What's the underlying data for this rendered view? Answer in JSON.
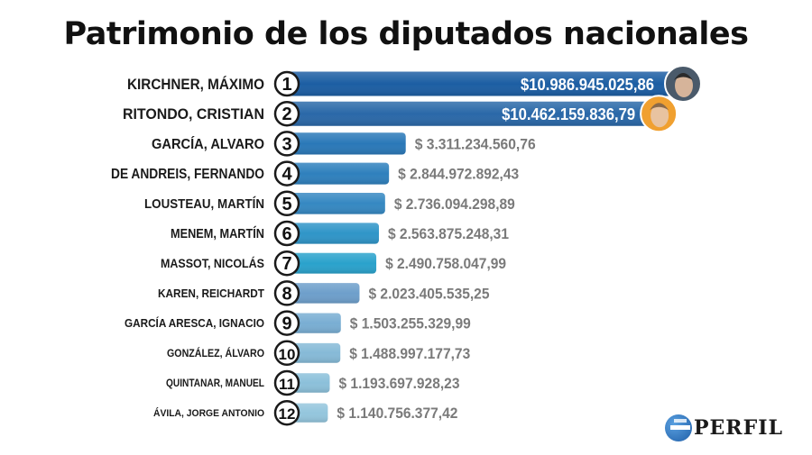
{
  "title": "Patrimonio de los diputados nacionales",
  "logo_text": "PERFIL",
  "chart_data": {
    "type": "bar",
    "orientation": "horizontal",
    "title": "Patrimonio de los diputados nacionales",
    "categories": [
      "KIRCHNER, MÁXIMO",
      "RITONDO, CRISTIAN",
      "GARCÍA, ALVARO",
      "DE ANDREIS, FERNANDO",
      "LOUSTEAU, MARTÍN",
      "MENEM, MARTÍN",
      "MASSOT, NICOLÁS",
      "KAREN, REICHARDT",
      "GARCÍA ARESCA, IGNACIO",
      "GONZÁLEZ, ÁLVARO",
      "QUINTANAR, MANUEL",
      "ÁVILA, JORGE ANTONIO"
    ],
    "ranks": [
      "1",
      "2",
      "3",
      "4",
      "5",
      "6",
      "7",
      "8",
      "9",
      "10",
      "11",
      "12"
    ],
    "values": [
      10986945025.86,
      10462159836.79,
      3311234560.76,
      2844972892.43,
      2736094298.89,
      2563875248.31,
      2490758047.99,
      2023405535.25,
      1503255329.99,
      1488997177.73,
      1193697928.23,
      1140756377.42
    ],
    "value_labels": [
      "$10.986.945.025,86",
      "$10.462.159.836,79",
      "$ 3.311.234.560,76",
      "$ 2.844.972.892,43",
      "$ 2.736.094.298,89",
      "$ 2.563.875.248,31",
      "$ 2.490.758.047,99",
      "$ 2.023.405.535,25",
      "$ 1.503.255.329,99",
      "$ 1.488.997.177,73",
      "$ 1.193.697.928,23",
      "$ 1.140.756.377,42"
    ],
    "colors": [
      "#1c5ea3",
      "#2a68a8",
      "#2a78b8",
      "#2f80bd",
      "#3588c2",
      "#2f95c8",
      "#2aa2cc",
      "#6e9fcb",
      "#79aed3",
      "#86bad7",
      "#8cc0da",
      "#94c6dd"
    ],
    "photo_ranks": [
      1,
      2
    ],
    "xlim": [
      0,
      10986945025.86
    ]
  }
}
